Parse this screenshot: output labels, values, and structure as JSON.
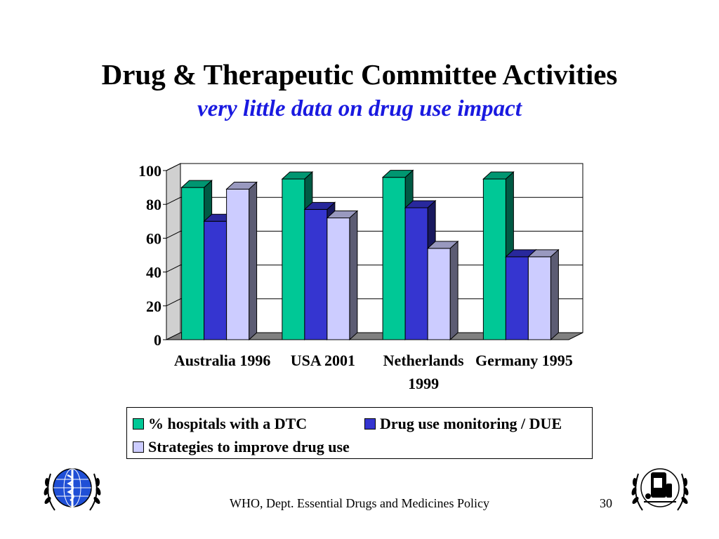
{
  "slide": {
    "title": "Drug & Therapeutic Committee Activities",
    "subtitle": "very little data on drug use impact",
    "footer": "WHO, Dept. Essential Drugs and Medicines Policy",
    "page_number": "30"
  },
  "chart_data": {
    "type": "bar",
    "title": "",
    "xlabel": "",
    "ylabel": "",
    "ylim": [
      0,
      100
    ],
    "yticks": [
      "0",
      "20",
      "40",
      "60",
      "80",
      "100"
    ],
    "grid": true,
    "legend_position": "bottom",
    "categories": [
      [
        "Australia 1996"
      ],
      [
        "USA 2001"
      ],
      [
        "Netherlands",
        "1999"
      ],
      [
        "Germany 1995"
      ]
    ],
    "series": [
      {
        "name": "% hospitals with a DTC",
        "values": [
          90,
          95,
          96,
          95
        ],
        "color": "#00c896"
      },
      {
        "name": "Drug use monitoring / DUE",
        "values": [
          70,
          77,
          78,
          49
        ],
        "color": "#3535d0"
      },
      {
        "name": "Strategies to improve drug use",
        "values": [
          89,
          72,
          54,
          49
        ],
        "color": "#ccccff"
      }
    ]
  },
  "logos": [
    "who-emblem-icon",
    "medicines-emblem-icon"
  ]
}
